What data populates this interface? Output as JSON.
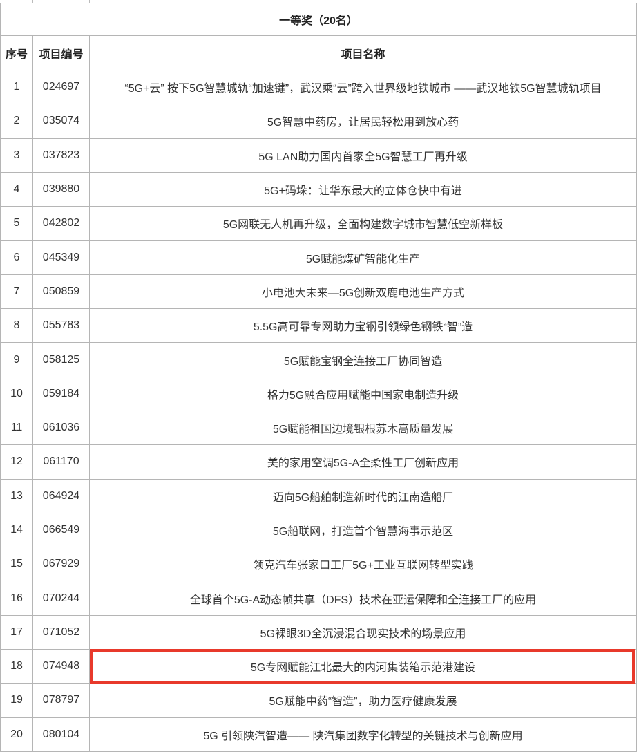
{
  "table": {
    "title": "一等奖（20名）",
    "headers": [
      "序号",
      "项目编号",
      "项目名称"
    ],
    "highlight_color": "#e8392b",
    "highlighted_row": 18,
    "rows": [
      {
        "no": "1",
        "code": "024697",
        "name": "“5G+云” 按下5G智慧城轨“加速键”，武汉乘“云”跨入世界级地铁城市  ——武汉地铁5G智慧城轨项目"
      },
      {
        "no": "2",
        "code": "035074",
        "name": "5G智慧中药房，让居民轻松用到放心药"
      },
      {
        "no": "3",
        "code": "037823",
        "name": "5G LAN助力国内首家全5G智慧工厂再升级"
      },
      {
        "no": "4",
        "code": "039880",
        "name": "5G+码垛：让华东最大的立体仓快中有进"
      },
      {
        "no": "5",
        "code": "042802",
        "name": "5G网联无人机再升级，全面构建数字城市智慧低空新样板"
      },
      {
        "no": "6",
        "code": "045349",
        "name": "5G赋能煤矿智能化生产"
      },
      {
        "no": "7",
        "code": "050859",
        "name": "小电池大未来—5G创新双鹿电池生产方式"
      },
      {
        "no": "8",
        "code": "055783",
        "name": "5.5G高可靠专网助力宝钢引领绿色钢铁“智”造"
      },
      {
        "no": "9",
        "code": "058125",
        "name": "5G赋能宝钢全连接工厂协同智造"
      },
      {
        "no": "10",
        "code": "059184",
        "name": "格力5G融合应用赋能中国家电制造升级"
      },
      {
        "no": "11",
        "code": "061036",
        "name": "5G赋能祖国边境银根苏木高质量发展"
      },
      {
        "no": "12",
        "code": "061170",
        "name": "美的家用空调5G-A全柔性工厂创新应用"
      },
      {
        "no": "13",
        "code": "064924",
        "name": "迈向5G船舶制造新时代的江南造船厂"
      },
      {
        "no": "14",
        "code": "066549",
        "name": "5G船联网，打造首个智慧海事示范区"
      },
      {
        "no": "15",
        "code": "067929",
        "name": "领克汽车张家口工厂5G+工业互联网转型实践"
      },
      {
        "no": "16",
        "code": "070244",
        "name": "全球首个5G-A动态帧共享（DFS）技术在亚运保障和全连接工厂的应用"
      },
      {
        "no": "17",
        "code": "071052",
        "name": "5G裸眼3D全沉浸混合现实技术的场景应用"
      },
      {
        "no": "18",
        "code": "074948",
        "name": "5G专网赋能江北最大的内河集装箱示范港建设"
      },
      {
        "no": "19",
        "code": "078797",
        "name": "5G赋能中药“智造”，助力医疗健康发展"
      },
      {
        "no": "20",
        "code": "080104",
        "name": "5G 引领陕汽智造—— 陕汽集团数字化转型的关键技术与创新应用"
      }
    ]
  }
}
